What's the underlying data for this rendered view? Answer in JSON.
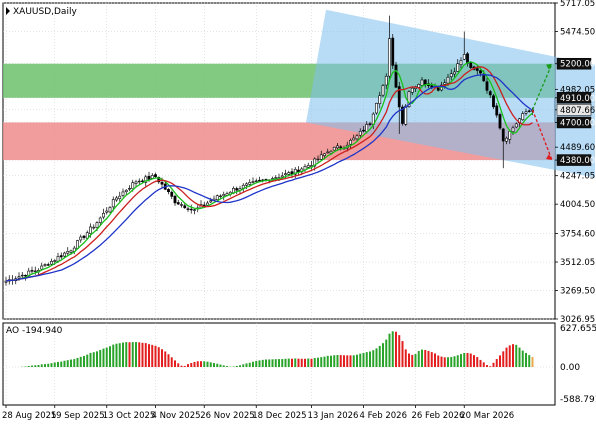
{
  "chart": {
    "symbol_label": "XAUUSD,Daily",
    "colors": {
      "bull": "#2e8b2e",
      "bear": "#000000",
      "grid": "#c8c8c8",
      "green_zone": "#6cbf6c",
      "red_zone": "#f08c8c",
      "channel": "#7fbfef",
      "ma_fast": "#19c019",
      "ma_mid": "#cc1f1f",
      "ma_slow": "#1f34c9",
      "ao_up": "#2aa32a",
      "ao_down": "#e21e1e",
      "ao_last": "#e8a94a",
      "badge_black": "#111111",
      "badge_gray": "#e8e8e8"
    }
  },
  "ao": {
    "label": "AO -194.940",
    "scale": {
      "top": "627.655",
      "zero": "0.00",
      "bottom": "-588.791"
    }
  },
  "chart_data": {
    "type": "candlestick",
    "title": "XAUUSD,Daily",
    "ylim": [
      3026.95,
      5717.05
    ],
    "y_ticks": [
      "5717.05",
      "5474.50",
      "5200.00",
      "4982.05",
      "4910.00",
      "4807.66",
      "4700.00",
      "4489.60",
      "4380.00",
      "4247.05",
      "4004.50",
      "3754.60",
      "3512.05",
      "3269.50",
      "3026.95"
    ],
    "x_ticks": [
      "28 Aug 2025",
      "19 Sep 2025",
      "13 Oct 2025",
      "4 Nov 2025",
      "26 Nov 2025",
      "18 Dec 2025",
      "13 Jan 2026",
      "4 Feb 2026",
      "26 Feb 2026",
      "20 Mar 2026"
    ],
    "levels": {
      "resistance_zone": [
        4910.0,
        5200.0
      ],
      "support_zone": [
        4380.0,
        4700.0
      ],
      "current_price": 4807.66
    },
    "trend_channel": {
      "upper": [
        [
          0,
          5660
        ],
        [
          160,
          5190
        ]
      ],
      "lower": [
        [
          0,
          4700
        ],
        [
          160,
          4230
        ]
      ]
    },
    "forecast_arrows": {
      "bullish_target": 5200.0,
      "bearish_target": 4380.0
    },
    "series": [
      {
        "name": "Close",
        "key_points": [
          [
            0,
            3350
          ],
          [
            10,
            3450
          ],
          [
            20,
            3620
          ],
          [
            28,
            3850
          ],
          [
            34,
            4060
          ],
          [
            40,
            4200
          ],
          [
            46,
            4240
          ],
          [
            52,
            4030
          ],
          [
            58,
            3950
          ],
          [
            64,
            4050
          ],
          [
            70,
            4130
          ],
          [
            76,
            4180
          ],
          [
            82,
            4230
          ],
          [
            88,
            4270
          ],
          [
            94,
            4350
          ],
          [
            100,
            4470
          ],
          [
            104,
            4500
          ],
          [
            108,
            4580
          ],
          [
            112,
            4700
          ],
          [
            114,
            4880
          ],
          [
            117,
            5080
          ],
          [
            118,
            5400
          ],
          [
            120,
            5000
          ],
          [
            122,
            4700
          ],
          [
            124,
            4980
          ],
          [
            128,
            5050
          ],
          [
            133,
            4990
          ],
          [
            138,
            5150
          ],
          [
            141,
            5270
          ],
          [
            143,
            5150
          ],
          [
            146,
            5130
          ],
          [
            149,
            4920
          ],
          [
            151,
            4780
          ],
          [
            153,
            4550
          ],
          [
            155,
            4620
          ],
          [
            158,
            4730
          ],
          [
            160,
            4790
          ],
          [
            162,
            4807.66
          ]
        ]
      },
      {
        "name": "MA fast",
        "color": "green"
      },
      {
        "name": "MA mid",
        "color": "red"
      },
      {
        "name": "MA slow",
        "color": "blue"
      }
    ]
  }
}
